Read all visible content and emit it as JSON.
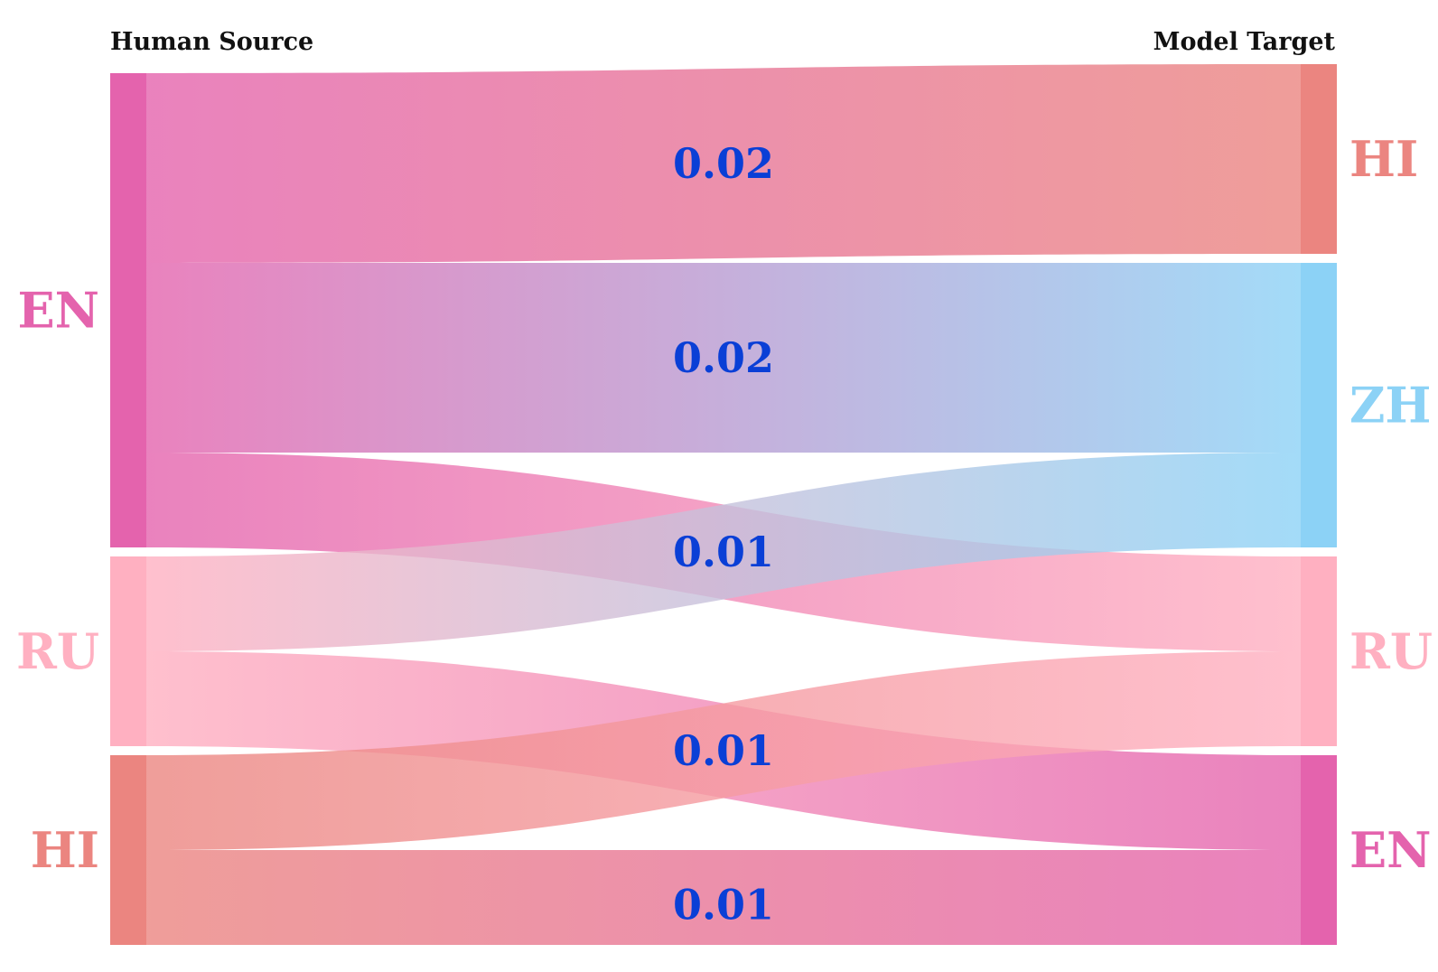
{
  "headers": {
    "source": "Human Source",
    "target": "Model Target"
  },
  "colors": {
    "EN": "#e463ad",
    "RU": "#ffb0c1",
    "HI": "#eb8580",
    "ZH": "#8cd2f6",
    "value_label": "#0a3fd6"
  },
  "chart_data": {
    "type": "sankey",
    "source_nodes": [
      {
        "id": "EN",
        "label": "EN",
        "color": "#e463ad"
      },
      {
        "id": "RU",
        "label": "RU",
        "color": "#ffb0c1"
      },
      {
        "id": "HI",
        "label": "HI",
        "color": "#eb8580"
      }
    ],
    "target_nodes": [
      {
        "id": "HI",
        "label": "HI",
        "color": "#eb8580"
      },
      {
        "id": "ZH",
        "label": "ZH",
        "color": "#8cd2f6"
      },
      {
        "id": "RU",
        "label": "RU",
        "color": "#ffb0c1"
      },
      {
        "id": "EN",
        "label": "EN",
        "color": "#e463ad"
      }
    ],
    "flows": [
      {
        "source": "EN",
        "target": "HI",
        "value": 0.02
      },
      {
        "source": "EN",
        "target": "ZH",
        "value": 0.02
      },
      {
        "source": "EN",
        "target": "RU",
        "value": 0.01
      },
      {
        "source": "RU",
        "target": "ZH",
        "value": 0.01
      },
      {
        "source": "RU",
        "target": "EN",
        "value": 0.01
      },
      {
        "source": "HI",
        "target": "RU",
        "value": 0.01
      },
      {
        "source": "HI",
        "target": "EN",
        "value": 0.01
      }
    ],
    "value_labels": [
      "0.02",
      "0.02",
      "0.01",
      "0.01",
      "0.01"
    ]
  }
}
